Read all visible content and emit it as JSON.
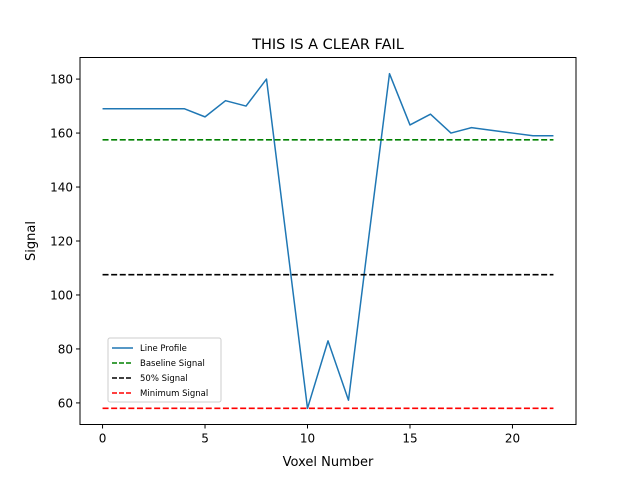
{
  "chart_data": {
    "type": "line",
    "title": "THIS IS A CLEAR FAIL",
    "xlabel": "Voxel Number",
    "ylabel": "Signal",
    "xlim": [
      -1.1,
      23.1
    ],
    "ylim": [
      52,
      188
    ],
    "xticks": [
      0,
      5,
      10,
      15,
      20
    ],
    "yticks": [
      60,
      80,
      100,
      120,
      140,
      160,
      180
    ],
    "grid": false,
    "legend_position": "lower-left",
    "series": [
      {
        "name": "Line Profile",
        "style": "solid",
        "color": "#1f77b4",
        "x": [
          0,
          1,
          2,
          3,
          4,
          5,
          6,
          7,
          8,
          9,
          10,
          11,
          12,
          13,
          14,
          15,
          16,
          17,
          18,
          19,
          20,
          21,
          22
        ],
        "y": [
          169,
          169,
          169,
          169,
          169,
          166,
          172,
          170,
          180,
          119,
          58,
          83,
          61,
          122,
          182,
          163,
          167,
          160,
          162,
          161,
          160,
          159,
          159
        ]
      },
      {
        "name": "Baseline Signal",
        "style": "dashed",
        "color": "#008000",
        "x": [
          0,
          22
        ],
        "y": [
          157.5,
          157.5
        ]
      },
      {
        "name": "50% Signal",
        "style": "dashed",
        "color": "#000000",
        "x": [
          0,
          22
        ],
        "y": [
          107.5,
          107.5
        ]
      },
      {
        "name": "Minimum Signal",
        "style": "dashed",
        "color": "#ff0000",
        "x": [
          0,
          22
        ],
        "y": [
          58,
          58
        ]
      }
    ]
  }
}
